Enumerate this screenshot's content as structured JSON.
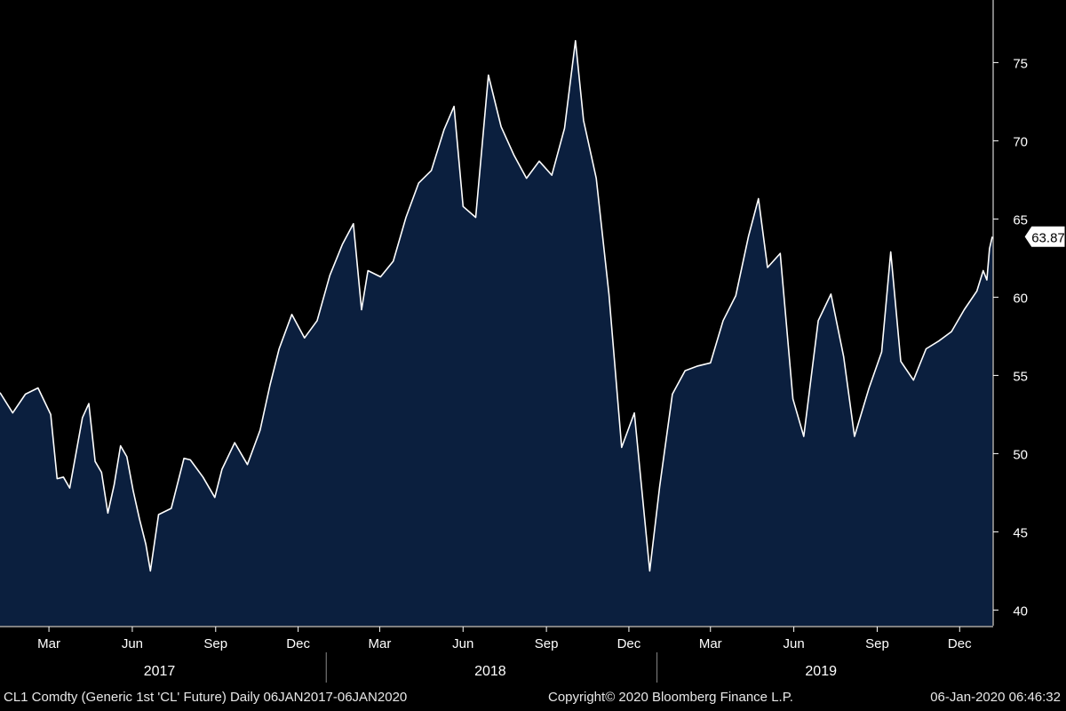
{
  "footer": {
    "left": "CL1 Comdty (Generic 1st 'CL' Future)  Daily 06JAN2017-06JAN2020",
    "center": "Copyright© 2020 Bloomberg Finance L.P.",
    "right": "06-Jan-2020 06:46:32"
  },
  "chart_data": {
    "type": "area",
    "title": "",
    "xlabel": "",
    "ylabel": "",
    "ylim": [
      39,
      79
    ],
    "xlim": [
      "2017-01-06",
      "2020-01-06"
    ],
    "yticks": [
      40,
      45,
      50,
      55,
      60,
      65,
      70,
      75
    ],
    "xticks": [
      {
        "label": "Mar",
        "date": "2017-03-01"
      },
      {
        "label": "Jun",
        "date": "2017-06-01"
      },
      {
        "label": "Sep",
        "date": "2017-09-01"
      },
      {
        "label": "Dec",
        "date": "2017-12-01"
      },
      {
        "label": "Mar",
        "date": "2018-03-01"
      },
      {
        "label": "Jun",
        "date": "2018-06-01"
      },
      {
        "label": "Sep",
        "date": "2018-09-01"
      },
      {
        "label": "Dec",
        "date": "2018-12-01"
      },
      {
        "label": "Mar",
        "date": "2019-03-01"
      },
      {
        "label": "Jun",
        "date": "2019-06-01"
      },
      {
        "label": "Sep",
        "date": "2019-09-01"
      },
      {
        "label": "Dec",
        "date": "2019-12-01"
      }
    ],
    "year_labels": [
      {
        "label": "2017",
        "date": "2017-07-01"
      },
      {
        "label": "2018",
        "date": "2018-07-01"
      },
      {
        "label": "2019",
        "date": "2019-07-01"
      }
    ],
    "year_dividers": [
      "2018-01-01",
      "2019-01-01"
    ],
    "last_value_label": "63.87",
    "grid": false,
    "colors": {
      "fill": "#0b1f3e",
      "line": "#ffffff",
      "background": "#000000",
      "axis": "#ffffff"
    },
    "series": [
      {
        "x": [
          "2017-01-06",
          "2017-01-20",
          "2017-02-03",
          "2017-02-17",
          "2017-03-03",
          "2017-03-10",
          "2017-03-17",
          "2017-03-24",
          "2017-04-07",
          "2017-04-14",
          "2017-04-21",
          "2017-04-28",
          "2017-05-05",
          "2017-05-12",
          "2017-05-19",
          "2017-05-26",
          "2017-06-02",
          "2017-06-09",
          "2017-06-16",
          "2017-06-21",
          "2017-06-30",
          "2017-07-14",
          "2017-07-28",
          "2017-08-04",
          "2017-08-18",
          "2017-08-31",
          "2017-09-08",
          "2017-09-22",
          "2017-10-06",
          "2017-10-20",
          "2017-10-31",
          "2017-11-10",
          "2017-11-24",
          "2017-12-08",
          "2017-12-22",
          "2018-01-05",
          "2018-01-19",
          "2018-01-31",
          "2018-02-09",
          "2018-02-16",
          "2018-03-02",
          "2018-03-16",
          "2018-03-30",
          "2018-04-13",
          "2018-04-27",
          "2018-05-11",
          "2018-05-22",
          "2018-06-01",
          "2018-06-15",
          "2018-06-29",
          "2018-07-13",
          "2018-07-27",
          "2018-08-10",
          "2018-08-24",
          "2018-09-07",
          "2018-09-21",
          "2018-10-03",
          "2018-10-12",
          "2018-10-26",
          "2018-11-09",
          "2018-11-23",
          "2018-12-07",
          "2018-12-24",
          "2019-01-04",
          "2019-01-18",
          "2019-02-01",
          "2019-02-15",
          "2019-03-01",
          "2019-03-15",
          "2019-03-29",
          "2019-04-12",
          "2019-04-23",
          "2019-05-03",
          "2019-05-17",
          "2019-05-31",
          "2019-06-12",
          "2019-06-28",
          "2019-07-12",
          "2019-07-26",
          "2019-08-07",
          "2019-08-23",
          "2019-09-06",
          "2019-09-16",
          "2019-09-27",
          "2019-10-11",
          "2019-10-25",
          "2019-11-08",
          "2019-11-22",
          "2019-12-06",
          "2019-12-20",
          "2019-12-27",
          "2019-12-31",
          "2020-01-03",
          "2020-01-06"
        ],
        "y": [
          53.9,
          52.6,
          53.8,
          54.2,
          52.5,
          48.4,
          48.5,
          47.8,
          52.3,
          53.2,
          49.5,
          48.8,
          46.2,
          48.0,
          50.5,
          49.8,
          47.6,
          45.8,
          44.2,
          42.5,
          46.1,
          46.5,
          49.7,
          49.6,
          48.5,
          47.2,
          49.0,
          50.7,
          49.3,
          51.5,
          54.4,
          56.7,
          58.9,
          57.4,
          58.5,
          61.4,
          63.4,
          64.7,
          59.2,
          61.7,
          61.3,
          62.3,
          65.1,
          67.3,
          68.1,
          70.7,
          72.2,
          65.8,
          65.1,
          74.2,
          70.9,
          69.1,
          67.6,
          68.7,
          67.8,
          70.8,
          76.4,
          71.3,
          67.6,
          60.2,
          50.4,
          52.6,
          42.5,
          47.9,
          53.8,
          55.3,
          55.6,
          55.8,
          58.5,
          60.1,
          63.9,
          66.3,
          61.9,
          62.8,
          53.5,
          51.1,
          58.5,
          60.2,
          56.2,
          51.1,
          54.2,
          56.5,
          62.9,
          55.9,
          54.7,
          56.7,
          57.2,
          57.8,
          59.2,
          60.4,
          61.7,
          61.1,
          63.1,
          63.87
        ]
      }
    ]
  }
}
